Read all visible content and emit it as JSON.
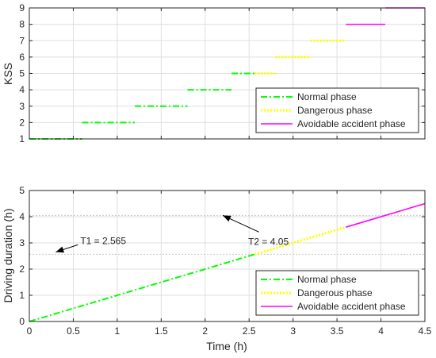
{
  "chart_data": [
    {
      "type": "line",
      "xlabel": "",
      "ylabel": "KSS",
      "xlim": [
        0,
        4.5
      ],
      "ylim": [
        1,
        9
      ],
      "x_ticks": [
        0,
        0.5,
        1,
        1.5,
        2,
        2.5,
        3,
        3.5,
        4,
        4.5
      ],
      "y_ticks": [
        1,
        2,
        3,
        4,
        5,
        6,
        7,
        8,
        9
      ],
      "x_tick_labels_shown": false,
      "grid": true,
      "legend_position": "bottom-right",
      "series": [
        {
          "name": "Normal phase",
          "color": "#00ff00",
          "style": "dash-dot",
          "segments": [
            {
              "x": [
                0,
                0.6
              ],
              "y": 1
            },
            {
              "x": [
                0.6,
                1.2
              ],
              "y": 2
            },
            {
              "x": [
                1.2,
                1.8
              ],
              "y": 3
            },
            {
              "x": [
                1.8,
                2.3
              ],
              "y": 4
            },
            {
              "x": [
                2.3,
                2.565
              ],
              "y": 5
            }
          ]
        },
        {
          "name": "Dangerous phase",
          "color": "#ffff00",
          "style": "dotted",
          "segments": [
            {
              "x": [
                2.565,
                2.8
              ],
              "y": 5
            },
            {
              "x": [
                2.8,
                3.2
              ],
              "y": 6
            },
            {
              "x": [
                3.2,
                3.6
              ],
              "y": 7
            }
          ]
        },
        {
          "name": "Avoidable accident phase",
          "color": "#ff00ff",
          "style": "solid",
          "segments": [
            {
              "x": [
                3.6,
                4.05
              ],
              "y": 8
            },
            {
              "x": [
                4.05,
                4.5
              ],
              "y": 9
            }
          ]
        }
      ]
    },
    {
      "type": "line",
      "xlabel": "Time (h)",
      "ylabel": "Driving duration (h)",
      "xlim": [
        0,
        4.5
      ],
      "ylim": [
        0,
        5
      ],
      "x_ticks": [
        0,
        0.5,
        1,
        1.5,
        2,
        2.5,
        3,
        3.5,
        4,
        4.5
      ],
      "y_ticks": [
        0,
        1,
        2,
        3,
        4,
        5
      ],
      "grid": true,
      "legend_position": "bottom-right",
      "reference_lines": [
        2.565,
        4.05
      ],
      "series": [
        {
          "name": "Normal phase",
          "color": "#00ff00",
          "style": "dash-dot",
          "x": [
            0,
            2.565
          ],
          "y": [
            0,
            2.565
          ]
        },
        {
          "name": "Dangerous phase",
          "color": "#ffff00",
          "style": "dotted",
          "x": [
            2.565,
            3.6
          ],
          "y": [
            2.565,
            3.6
          ]
        },
        {
          "name": "Avoidable accident phase",
          "color": "#ff00ff",
          "style": "solid",
          "x": [
            3.6,
            4.5
          ],
          "y": [
            3.6,
            4.5
          ]
        }
      ],
      "annotations": [
        {
          "text": "T1 = 2.565",
          "x": 0.58,
          "y": 3.08,
          "arrow_to": [
            0.3,
            2.65
          ],
          "text_anchor": "start"
        },
        {
          "text": "T2 = 4.05",
          "x": 2.72,
          "y": 3.05,
          "arrow_to": [
            2.2,
            4.05
          ],
          "text_anchor": "middle"
        }
      ]
    }
  ]
}
